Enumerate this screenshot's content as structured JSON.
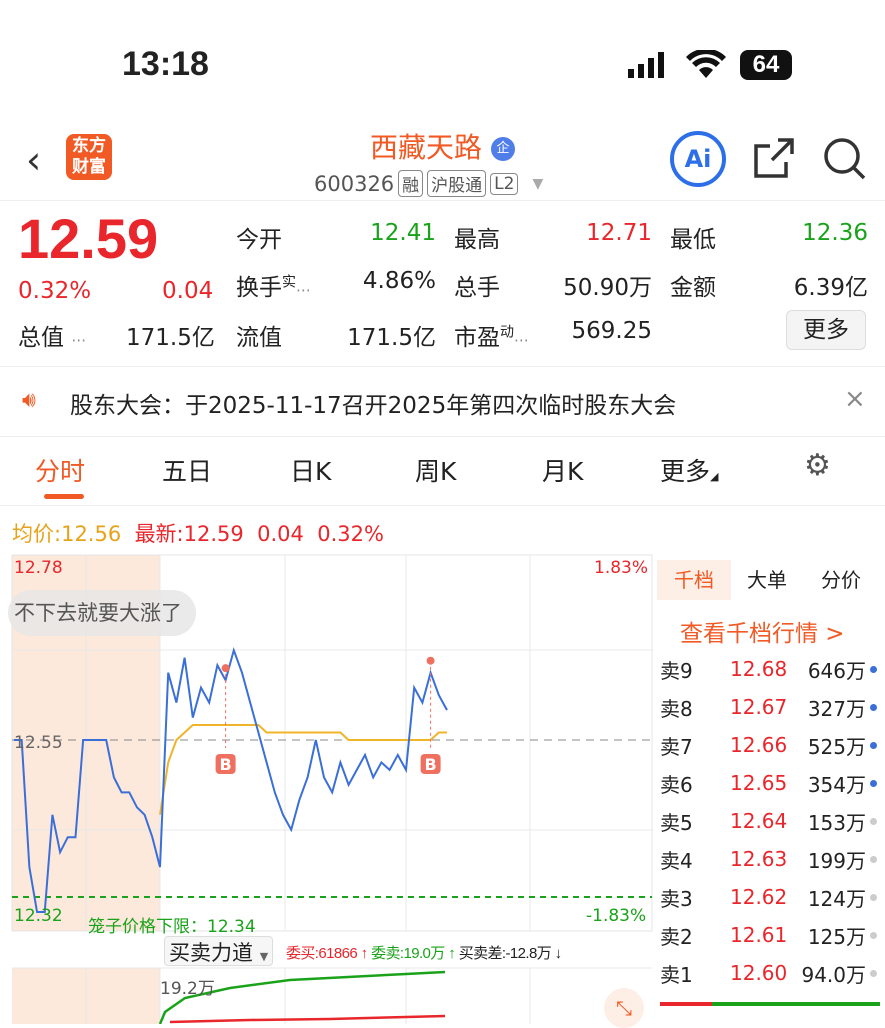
{
  "status_bar": {
    "time": "13:18",
    "battery": "64"
  },
  "header": {
    "logo": "东方财富",
    "title": "西藏天路",
    "badge": "企",
    "code": "600326",
    "tags": [
      "融",
      "沪股通",
      "L2"
    ],
    "ai_label": "Ai"
  },
  "quote": {
    "price": "12.59",
    "change_pct": "0.32%",
    "change": "0.04",
    "fields": [
      {
        "label": "今开",
        "value": "12.41",
        "color": "green"
      },
      {
        "label": "最高",
        "value": "12.71",
        "color": "red"
      },
      {
        "label": "最低",
        "value": "12.36",
        "color": "green"
      },
      {
        "label": "换手",
        "sup": "实",
        "value": "4.86%",
        "color": "dark"
      },
      {
        "label": "总手",
        "value": "50.90万",
        "color": "dark"
      },
      {
        "label": "金额",
        "value": "6.39亿",
        "color": "dark"
      },
      {
        "label": "总值",
        "value": "171.5亿"
      },
      {
        "label": "流值",
        "value": "171.5亿"
      },
      {
        "label": "市盈",
        "sup": "动",
        "value": "569.25"
      }
    ],
    "more": "更多"
  },
  "notice": {
    "text": "股东大会：于2025-11-17召开2025年第四次临时股东大会"
  },
  "tabs": [
    "分时",
    "五日",
    "日K",
    "周K",
    "月K",
    "更多"
  ],
  "legend": {
    "avg_label": "均价:",
    "avg": "12.56",
    "latest_label": "最新:",
    "latest": "12.59",
    "chg": "0.04",
    "pct": "0.32%"
  },
  "chart_data": {
    "type": "line",
    "ylim": [
      12.32,
      12.78
    ],
    "ref_price": "12.55",
    "top_label": "12.78",
    "bottom_label": "12.32",
    "top_pct": "1.83%",
    "bottom_pct": "-1.83%",
    "limit_text": "笼子价格下限：12.34",
    "comment": "不下去就要大涨了",
    "auction_prices": [
      12.55,
      12.55,
      12.38,
      12.32,
      12.32,
      12.45,
      12.4,
      12.42,
      12.42,
      12.55,
      12.55,
      12.55,
      12.55,
      12.5,
      12.48,
      12.48,
      12.46,
      12.45,
      12.42,
      12.38
    ],
    "prices": [
      12.38,
      12.64,
      12.6,
      12.66,
      12.58,
      12.62,
      12.6,
      12.65,
      12.63,
      12.67,
      12.64,
      12.6,
      12.56,
      12.52,
      12.48,
      12.45,
      12.43,
      12.47,
      12.5,
      12.55,
      12.5,
      12.48,
      12.52,
      12.49,
      12.51,
      12.53,
      12.5,
      12.52,
      12.51,
      12.53,
      12.51,
      12.62,
      12.6,
      12.64,
      12.61,
      12.59
    ],
    "avg_prices": [
      12.45,
      12.52,
      12.55,
      12.56,
      12.57,
      12.57,
      12.57,
      12.57,
      12.57,
      12.57,
      12.57,
      12.57,
      12.57,
      12.56,
      12.56,
      12.56,
      12.56,
      12.56,
      12.56,
      12.56,
      12.56,
      12.56,
      12.56,
      12.55,
      12.55,
      12.55,
      12.55,
      12.55,
      12.55,
      12.55,
      12.55,
      12.55,
      12.55,
      12.55,
      12.56,
      12.56
    ],
    "markers": [
      {
        "label": "B",
        "index": 8
      },
      {
        "label": "B",
        "index": 33
      }
    ]
  },
  "force": {
    "selector": "买卖力道",
    "buy": "委买:61866 ↑",
    "sell": "委卖:19.0万 ↑",
    "diff": "买卖差:-12.8万 ↓",
    "label": "19.2万"
  },
  "orderbook": {
    "tabs": [
      "千档",
      "大单",
      "分价"
    ],
    "link": "查看千档行情 >",
    "rows": [
      {
        "l": "卖9",
        "p": "12.68",
        "v": "646万"
      },
      {
        "l": "卖8",
        "p": "12.67",
        "v": "327万"
      },
      {
        "l": "卖7",
        "p": "12.66",
        "v": "525万"
      },
      {
        "l": "卖6",
        "p": "12.65",
        "v": "354万"
      },
      {
        "l": "卖5",
        "p": "12.64",
        "v": "153万"
      },
      {
        "l": "卖4",
        "p": "12.63",
        "v": "199万"
      },
      {
        "l": "卖3",
        "p": "12.62",
        "v": "124万"
      },
      {
        "l": "卖2",
        "p": "12.61",
        "v": "125万"
      },
      {
        "l": "卖1",
        "p": "12.60",
        "v": "94.0万"
      }
    ]
  }
}
